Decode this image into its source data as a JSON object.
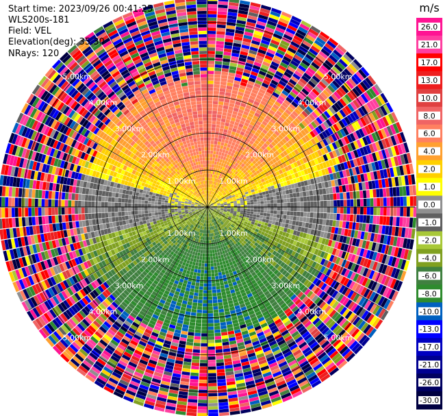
{
  "info": {
    "start_time": "Start time: 2023/09/26 00:41:25",
    "instrument": "WLS200s-181",
    "field": "Field: VEL",
    "elevation": "Elevation(deg): 35.30",
    "nrays": "NRays: 120"
  },
  "chart_data": {
    "type": "heatmap",
    "projection": "polar-ppi",
    "field": "VEL",
    "units": "m/s",
    "nrays": 120,
    "range_rings_km": [
      1.0,
      2.0,
      3.0,
      4.0,
      5.0
    ],
    "range_ring_labels": [
      "1.00km",
      "2.00km",
      "3.00km",
      "4.00km",
      "5.00km"
    ],
    "max_range_km": 5.6,
    "colorbar": {
      "unit_label": "m/s",
      "vmin": -30.0,
      "vmax": 30.0,
      "tick_labels": [
        "26.0",
        "21.0",
        "17.0",
        "13.0",
        "10.0",
        "8.0",
        "6.0",
        "4.0",
        "2.0",
        "1.0",
        "0.0",
        "-1.0",
        "-2.0",
        "-4.0",
        "-6.0",
        "-8.0",
        "-10.0",
        "-13.0",
        "-17.0",
        "-21.0",
        "-26.0",
        "-30.0"
      ],
      "colors": [
        "#ff1493",
        "#ff3ea0",
        "#ff0000",
        "#ee1e1e",
        "#e04040",
        "#f06464",
        "#ff8060",
        "#ffa030",
        "#ffd000",
        "#ffff00",
        "#909090",
        "#606060",
        "#a8c838",
        "#80a020",
        "#408040",
        "#2e8b2e",
        "#0060c0",
        "#0000ff",
        "#0000c0",
        "#000090",
        "#000060",
        "#000040"
      ]
    },
    "velocity_pattern": {
      "north_sector": "positive 6 to 10 m/s",
      "near_horizontal": "near 0 m/s",
      "south_sector": "negative -2 to -8 m/s",
      "outer_ranges": "noise beyond ~3.3 km"
    }
  }
}
